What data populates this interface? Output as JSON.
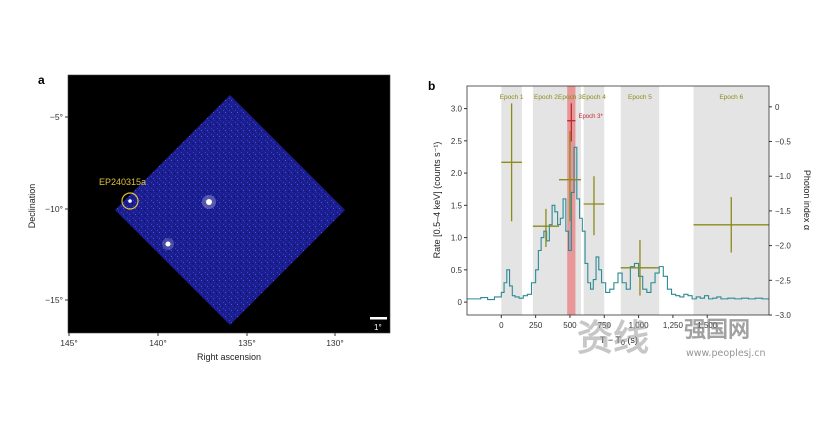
{
  "panel_a": {
    "label": "a",
    "target_label": "EP240315a",
    "xlabel": "Right ascension",
    "ylabel": "Declination",
    "x_ticks": [
      "145°",
      "140°",
      "135°",
      "130°"
    ],
    "y_ticks": [
      "−5°",
      "−10°",
      "−15°"
    ],
    "scale_bar_label": "1°",
    "colors": {
      "background": "#000000",
      "field": "#1a1a8c",
      "circle": "#e0c23c",
      "label": "#e0c23c"
    }
  },
  "panel_b": {
    "label": "b",
    "ylabel_left": "Rate [0.5–4 keV] (counts s⁻¹)",
    "ylabel_right": "Photon index α",
    "xlabel_prefix": "T − T",
    "xlabel_sub": "0",
    "xlabel_suffix": " (s)",
    "colors": {
      "light_curve": "#2a8a96",
      "index": "#8b8a1a",
      "index_highlight": "#c0282e",
      "epoch_band": "#e4e4e4",
      "highlight_band": "#e88a8a",
      "epoch_text": "#8b8a1a",
      "highlight_text": "#c0282e"
    }
  },
  "chart_data": {
    "type": "line",
    "x_ticks": [
      "0",
      "250",
      "500",
      "750",
      "1,000",
      "1,250",
      "1,500"
    ],
    "xlim": [
      -250,
      1950
    ],
    "ylim": [
      -0.2,
      3.35
    ],
    "y_ticks": [
      "0",
      "0.5",
      "1.0",
      "1.5",
      "2.0",
      "2.5",
      "3.0"
    ],
    "y2lim": [
      -3.0,
      0.3
    ],
    "y2_ticks": [
      "0",
      "−0.5",
      "−1.0",
      "−1.5",
      "−2.0",
      "−2.5",
      "−3.0"
    ],
    "epochs": [
      {
        "name": "Epoch 1",
        "start": 0,
        "end": 150
      },
      {
        "name": "Epoch 2",
        "start": 230,
        "end": 420
      },
      {
        "name": "Epoch 3",
        "start": 420,
        "end": 580
      },
      {
        "name": "Epoch 4",
        "start": 600,
        "end": 750
      },
      {
        "name": "Epoch 5",
        "start": 870,
        "end": 1150
      },
      {
        "name": "Epoch 6",
        "start": 1400,
        "end": 1950
      }
    ],
    "highlight": {
      "name": "Epoch 3*",
      "start": 480,
      "end": 540
    },
    "light_curve": {
      "x": [
        -250,
        -200,
        -150,
        -100,
        -50,
        0,
        20,
        40,
        60,
        80,
        100,
        130,
        160,
        190,
        220,
        250,
        270,
        290,
        310,
        330,
        350,
        370,
        390,
        410,
        430,
        450,
        470,
        490,
        510,
        530,
        550,
        570,
        590,
        610,
        630,
        650,
        670,
        690,
        710,
        730,
        760,
        790,
        820,
        850,
        880,
        910,
        940,
        970,
        1000,
        1030,
        1060,
        1090,
        1120,
        1150,
        1180,
        1210,
        1240,
        1270,
        1300,
        1330,
        1360,
        1390,
        1420,
        1450,
        1480,
        1510,
        1540,
        1570,
        1600,
        1650,
        1700,
        1750,
        1800,
        1850,
        1900,
        1950
      ],
      "y": [
        0.05,
        0.05,
        0.07,
        0.04,
        0.08,
        0.15,
        0.3,
        0.5,
        0.25,
        0.1,
        0.08,
        0.06,
        0.1,
        0.12,
        0.3,
        0.5,
        0.8,
        1.0,
        1.1,
        0.95,
        1.2,
        1.5,
        1.4,
        1.2,
        1.3,
        1.6,
        1.1,
        0.8,
        1.7,
        2.4,
        1.6,
        1.3,
        1.1,
        0.6,
        0.3,
        0.2,
        0.35,
        0.7,
        0.5,
        0.3,
        0.15,
        0.2,
        0.3,
        0.45,
        0.3,
        0.2,
        0.55,
        0.6,
        0.4,
        0.2,
        0.15,
        0.3,
        0.45,
        0.55,
        0.4,
        0.2,
        0.12,
        0.1,
        0.08,
        0.12,
        0.1,
        0.05,
        0.08,
        0.06,
        0.1,
        0.05,
        0.06,
        0.08,
        0.05,
        0.06,
        0.05,
        0.06,
        0.05,
        0.06,
        0.05,
        0.05
      ]
    },
    "photon_index": [
      {
        "x": 75,
        "xerr": 75,
        "y": -0.8,
        "yerr": [
          0.85,
          0.85
        ],
        "highlight": false
      },
      {
        "x": 325,
        "xerr": 95,
        "y": -1.72,
        "yerr": [
          0.3,
          0.25
        ],
        "highlight": false
      },
      {
        "x": 510,
        "xerr": 30,
        "y": -0.2,
        "yerr": [
          0.3,
          0.25
        ],
        "highlight": true
      },
      {
        "x": 500,
        "xerr": 80,
        "y": -1.05,
        "yerr": [
          0.6,
          0.7
        ],
        "highlight": false
      },
      {
        "x": 675,
        "xerr": 75,
        "y": -1.4,
        "yerr": [
          0.45,
          0.4
        ],
        "highlight": false
      },
      {
        "x": 1010,
        "xerr": 140,
        "y": -2.32,
        "yerr": [
          0.4,
          0.4
        ],
        "highlight": false
      },
      {
        "x": 1675,
        "xerr": 275,
        "y": -1.7,
        "yerr": [
          0.4,
          0.4
        ],
        "highlight": false
      }
    ]
  },
  "watermark": {
    "cn_text": "资线",
    "site_text": "强国网",
    "url": "www.peoplesj.cn"
  }
}
